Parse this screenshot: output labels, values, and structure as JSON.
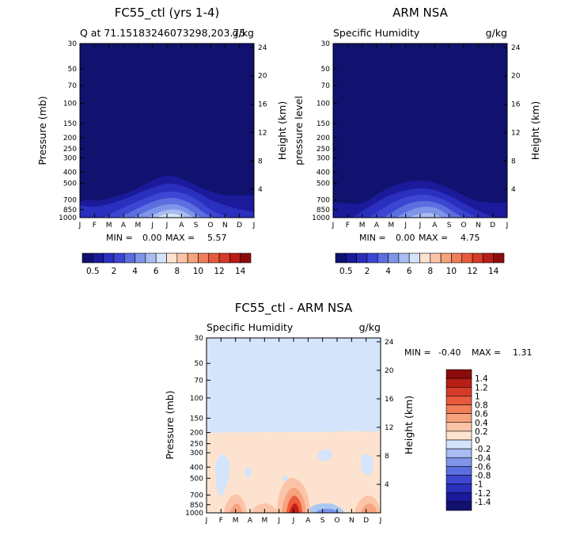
{
  "colors": {
    "field_blue": [
      "#11116f",
      "#1a1a9a",
      "#2a2fbe",
      "#3c46d2",
      "#5b6fe0",
      "#7f95ea",
      "#a9bdf2",
      "#d4e4fa"
    ],
    "diff_pos": "#fde3cf",
    "diff_neg_light": "#d4e4fa",
    "diff_neg_mid": "#a9c8f2",
    "diff_mid_orange": "#f7a37e",
    "diff_strong_orange": "#ec5a3a",
    "diff_red": "#c41f16"
  },
  "chart_data": [
    {
      "type": "contour",
      "title": "FC55_ctl (yrs 1-4)",
      "subtitle_left": "Q at 71.15183246073298,203.75",
      "subtitle_right": "g/kg",
      "ylabel_left": "Pressure (mb)",
      "ylabel_right": "Height (km)",
      "x_ticks": [
        "J",
        "F",
        "M",
        "A",
        "M",
        "J",
        "J",
        "A",
        "S",
        "O",
        "N",
        "D",
        "J"
      ],
      "p_ticks": [
        30,
        50,
        70,
        100,
        150,
        200,
        250,
        300,
        400,
        500,
        700,
        850,
        1000
      ],
      "height_ticks": [
        24,
        20,
        16,
        12,
        8,
        4
      ],
      "stats": {
        "min_label": "MIN =",
        "min": "0.00",
        "max_label": "MAX =",
        "max": "5.57"
      }
    },
    {
      "type": "contour",
      "title": "ARM NSA",
      "subtitle_left": "Specific Humidity",
      "subtitle_right": "g/kg",
      "ylabel_left": "pressure level",
      "ylabel_right": "Height (km)",
      "x_ticks": [
        "J",
        "F",
        "M",
        "A",
        "M",
        "J",
        "J",
        "A",
        "S",
        "O",
        "N",
        "D",
        "J"
      ],
      "p_ticks": [
        30,
        50,
        70,
        100,
        150,
        200,
        250,
        300,
        400,
        500,
        700,
        850,
        1000
      ],
      "height_ticks": [
        24,
        20,
        16,
        12,
        8,
        4
      ],
      "stats": {
        "min_label": "MIN =",
        "min": "0.00",
        "max_label": "MAX =",
        "max": "4.75"
      }
    },
    {
      "type": "contour",
      "title": "FC55_ctl - ARM NSA",
      "subtitle_left": "Specific Humidity",
      "subtitle_right": "g/kg",
      "ylabel_left": "Pressure (mb)",
      "ylabel_right": "Height (km)",
      "x_ticks": [
        "J",
        "F",
        "M",
        "A",
        "M",
        "J",
        "J",
        "A",
        "S",
        "O",
        "N",
        "D",
        "J"
      ],
      "p_ticks": [
        30,
        50,
        70,
        100,
        150,
        200,
        250,
        300,
        400,
        500,
        700,
        850,
        1000
      ],
      "height_ticks": [
        24,
        20,
        16,
        12,
        8,
        4
      ],
      "stats": {
        "min_label": "MIN =",
        "min": "-0.40",
        "max_label": "MAX =",
        "max": "1.31"
      }
    }
  ],
  "colorbar_top": {
    "labels": [
      "0.5",
      "2",
      "4",
      "6",
      "8",
      "10",
      "12",
      "14"
    ],
    "colors": [
      "#11116f",
      "#1a1a9a",
      "#2a2fbe",
      "#3c46d2",
      "#5b6fe0",
      "#7f95ea",
      "#a9bdf2",
      "#d4e4fa",
      "#fde3cf",
      "#fbc4a8",
      "#f7a37e",
      "#f07e5a",
      "#e75a3c",
      "#d63a28",
      "#b81e16",
      "#8c0c0c"
    ]
  },
  "colorbar_diff": {
    "labels": [
      "1.4",
      "1.2",
      "1",
      "0.8",
      "0.6",
      "0.4",
      "0.2",
      "0",
      "-0.2",
      "-0.4",
      "-0.6",
      "-0.8",
      "-1",
      "-1.2",
      "-1.4"
    ],
    "colors": [
      "#8c0c0c",
      "#b81e16",
      "#d63a28",
      "#e75a3c",
      "#f07e5a",
      "#f7a37e",
      "#fbc4a8",
      "#fde3cf",
      "#d4e4fa",
      "#a9bdf2",
      "#7f95ea",
      "#5b6fe0",
      "#3c46d2",
      "#2a2fbe",
      "#1a1a9a",
      "#11116f"
    ]
  }
}
